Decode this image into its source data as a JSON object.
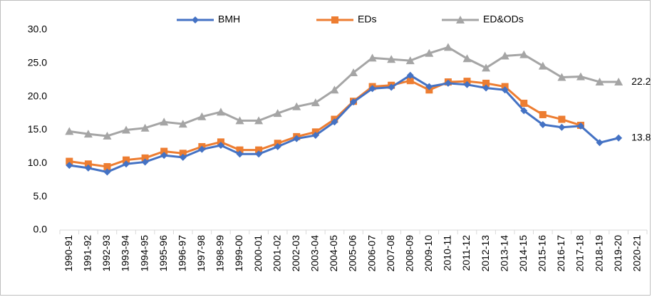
{
  "chart_data": {
    "type": "line",
    "categories": [
      "1990-91",
      "1991-92",
      "1992-93",
      "1993-94",
      "1994-95",
      "1995-96",
      "1996-97",
      "1997-98",
      "1998-99",
      "1999-00",
      "2000-01",
      "2001-02",
      "2002-03",
      "2003-04",
      "2004-05",
      "2005-06",
      "2006-07",
      "2007-08",
      "2008-09",
      "2009-10",
      "2010-11",
      "2011-12",
      "2012-13",
      "2013-14",
      "2014-15",
      "2015-16",
      "2016-17",
      "2017-18",
      "2018-19",
      "2019-20",
      "2020-21"
    ],
    "series": [
      {
        "name": "BMH",
        "color": "#4472c4",
        "marker": "diamond",
        "label_last": true,
        "values": [
          9.7,
          9.3,
          8.7,
          9.9,
          10.2,
          11.2,
          10.9,
          12.1,
          12.7,
          11.4,
          11.4,
          12.5,
          13.7,
          14.2,
          16.2,
          19.2,
          21.2,
          21.4,
          23.2,
          21.5,
          22.0,
          21.8,
          21.3,
          21.0,
          17.9,
          15.8,
          15.4,
          15.6,
          13.1,
          13.8,
          null
        ]
      },
      {
        "name": "EDs",
        "color": "#ed7d31",
        "marker": "square",
        "label_last": false,
        "values": [
          10.3,
          9.9,
          9.5,
          10.5,
          10.8,
          11.8,
          11.5,
          12.5,
          13.2,
          12.0,
          12.0,
          13.0,
          14.0,
          14.7,
          16.6,
          19.3,
          21.5,
          21.7,
          22.4,
          21.0,
          22.2,
          22.3,
          22.0,
          21.5,
          19.0,
          17.3,
          16.6,
          15.7,
          null,
          null,
          null
        ]
      },
      {
        "name": "ED&ODs",
        "color": "#a5a5a5",
        "marker": "triangle",
        "label_last": true,
        "values": [
          14.8,
          14.4,
          14.1,
          15.0,
          15.3,
          16.2,
          15.9,
          17.0,
          17.7,
          16.4,
          16.4,
          17.5,
          18.5,
          19.1,
          21.0,
          23.6,
          25.8,
          25.6,
          25.4,
          26.5,
          27.4,
          25.7,
          24.3,
          26.1,
          26.3,
          24.6,
          22.9,
          23.0,
          22.2,
          22.2,
          null
        ]
      }
    ],
    "ylim": [
      0,
      30
    ],
    "yticks": [
      {
        "value": 0,
        "label": "0.0"
      },
      {
        "value": 5,
        "label": "5.0"
      },
      {
        "value": 10,
        "label": "10.0"
      },
      {
        "value": 15,
        "label": "15.0"
      },
      {
        "value": 20,
        "label": "20.0"
      },
      {
        "value": 25,
        "label": "25.0"
      },
      {
        "value": 30,
        "label": "30.0"
      }
    ],
    "grid": false,
    "legend": "top"
  }
}
